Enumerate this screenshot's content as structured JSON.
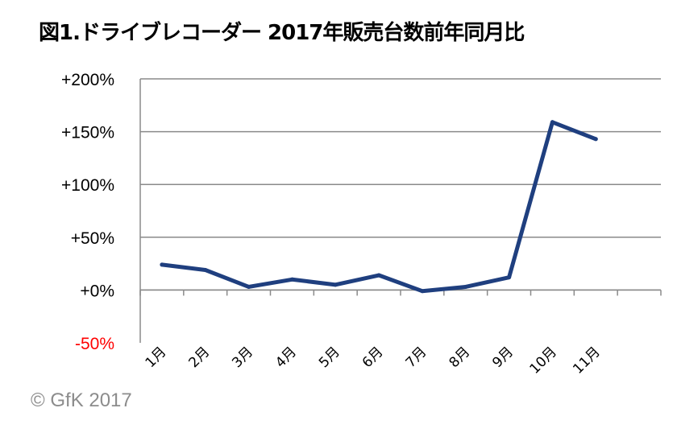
{
  "chart_data": {
    "type": "line",
    "title": "図1.ドライブレコーダー 2017年販売台数前年同月比",
    "categories": [
      "1月",
      "2月",
      "3月",
      "4月",
      "5月",
      "6月",
      "7月",
      "8月",
      "9月",
      "10月",
      "11月"
    ],
    "series": [
      {
        "values": [
          24,
          19,
          3,
          10,
          5,
          14,
          -1,
          3,
          12,
          159,
          143
        ],
        "color": "#1f3f7f"
      }
    ],
    "y_ticks": [
      {
        "value": 200,
        "label": "+200%",
        "color": "#000000"
      },
      {
        "value": 150,
        "label": "+150%",
        "color": "#000000"
      },
      {
        "value": 100,
        "label": "+100%",
        "color": "#000000"
      },
      {
        "value": 50,
        "label": "+50%",
        "color": "#000000"
      },
      {
        "value": 0,
        "label": "+0%",
        "color": "#000000"
      },
      {
        "value": -50,
        "label": "-50%",
        "color": "#ff0000"
      }
    ],
    "ylim": [
      -50,
      200
    ],
    "x_slots": 12,
    "grid": true,
    "xlabel": "",
    "ylabel": ""
  },
  "copyright": "© GfK 2017"
}
